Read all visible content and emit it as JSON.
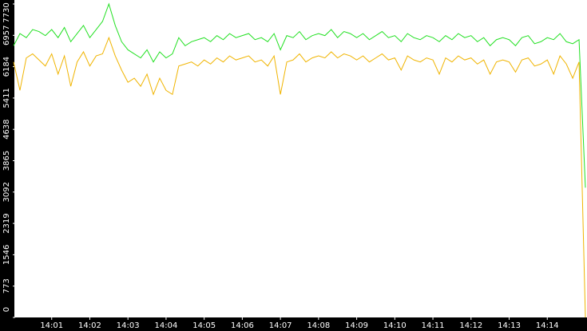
{
  "chart_data": {
    "type": "line",
    "categories": [
      null,
      null,
      null,
      null,
      null,
      null,
      "14:01",
      null,
      null,
      null,
      null,
      null,
      "14:02",
      null,
      null,
      null,
      null,
      null,
      "14:03",
      null,
      null,
      null,
      null,
      null,
      "14:04",
      null,
      null,
      null,
      null,
      null,
      "14:05",
      null,
      null,
      null,
      null,
      null,
      "14:06",
      null,
      null,
      null,
      null,
      null,
      "14:07",
      null,
      null,
      null,
      null,
      null,
      "14:08",
      null,
      null,
      null,
      null,
      null,
      "14:09",
      null,
      null,
      null,
      null,
      null,
      "14:10",
      null,
      null,
      null,
      null,
      null,
      "14:11",
      null,
      null,
      null,
      null,
      null,
      "14:12",
      null,
      null,
      null,
      null,
      null,
      "14:13",
      null,
      null,
      null,
      null,
      null,
      "14:14",
      null,
      null,
      null,
      null,
      null,
      null
    ],
    "series": [
      {
        "color": "#22e022",
        "values": [
          6700,
          7000,
          6900,
          7100,
          7050,
          6950,
          7100,
          6900,
          7150,
          6800,
          7000,
          7200,
          6900,
          7100,
          7300,
          7730,
          7200,
          6800,
          6600,
          6500,
          6400,
          6600,
          6300,
          6550,
          6400,
          6500,
          6900,
          6700,
          6800,
          6850,
          6900,
          6800,
          6950,
          6850,
          7000,
          6900,
          6950,
          7000,
          6850,
          6900,
          6800,
          7000,
          6600,
          6950,
          6900,
          7050,
          6850,
          6950,
          7000,
          6950,
          7100,
          6900,
          7050,
          7000,
          6900,
          7000,
          6850,
          6950,
          7050,
          6900,
          6950,
          6800,
          7000,
          6900,
          6850,
          6950,
          6900,
          6800,
          6950,
          6850,
          7000,
          6900,
          6950,
          6800,
          6900,
          6700,
          6850,
          6900,
          6850,
          6700,
          6900,
          6950,
          6750,
          6800,
          6900,
          6850,
          7000,
          6800,
          6750,
          6850,
          3200
        ]
      },
      {
        "color": "#f0b400",
        "values": [
          6300,
          5600,
          6400,
          6500,
          6350,
          6200,
          6500,
          6000,
          6450,
          5700,
          6300,
          6550,
          6200,
          6450,
          6500,
          6900,
          6450,
          6100,
          5800,
          5900,
          5700,
          6000,
          5500,
          5900,
          5600,
          5500,
          6200,
          6250,
          6300,
          6200,
          6350,
          6250,
          6400,
          6300,
          6450,
          6350,
          6400,
          6450,
          6300,
          6350,
          6200,
          6450,
          5500,
          6300,
          6350,
          6500,
          6300,
          6400,
          6450,
          6400,
          6550,
          6400,
          6500,
          6450,
          6350,
          6450,
          6300,
          6400,
          6500,
          6350,
          6400,
          6100,
          6450,
          6350,
          6300,
          6400,
          6350,
          6000,
          6400,
          6300,
          6450,
          6350,
          6400,
          6250,
          6350,
          6000,
          6300,
          6350,
          6300,
          6050,
          6350,
          6400,
          6200,
          6250,
          6350,
          6000,
          6450,
          6250,
          5900,
          6300,
          0
        ]
      }
    ],
    "ylim": [
      0,
      7730
    ],
    "yticks": [
      0,
      773,
      1546,
      2319,
      3092,
      3865,
      4638,
      5411,
      6184,
      6957,
      7730
    ]
  }
}
